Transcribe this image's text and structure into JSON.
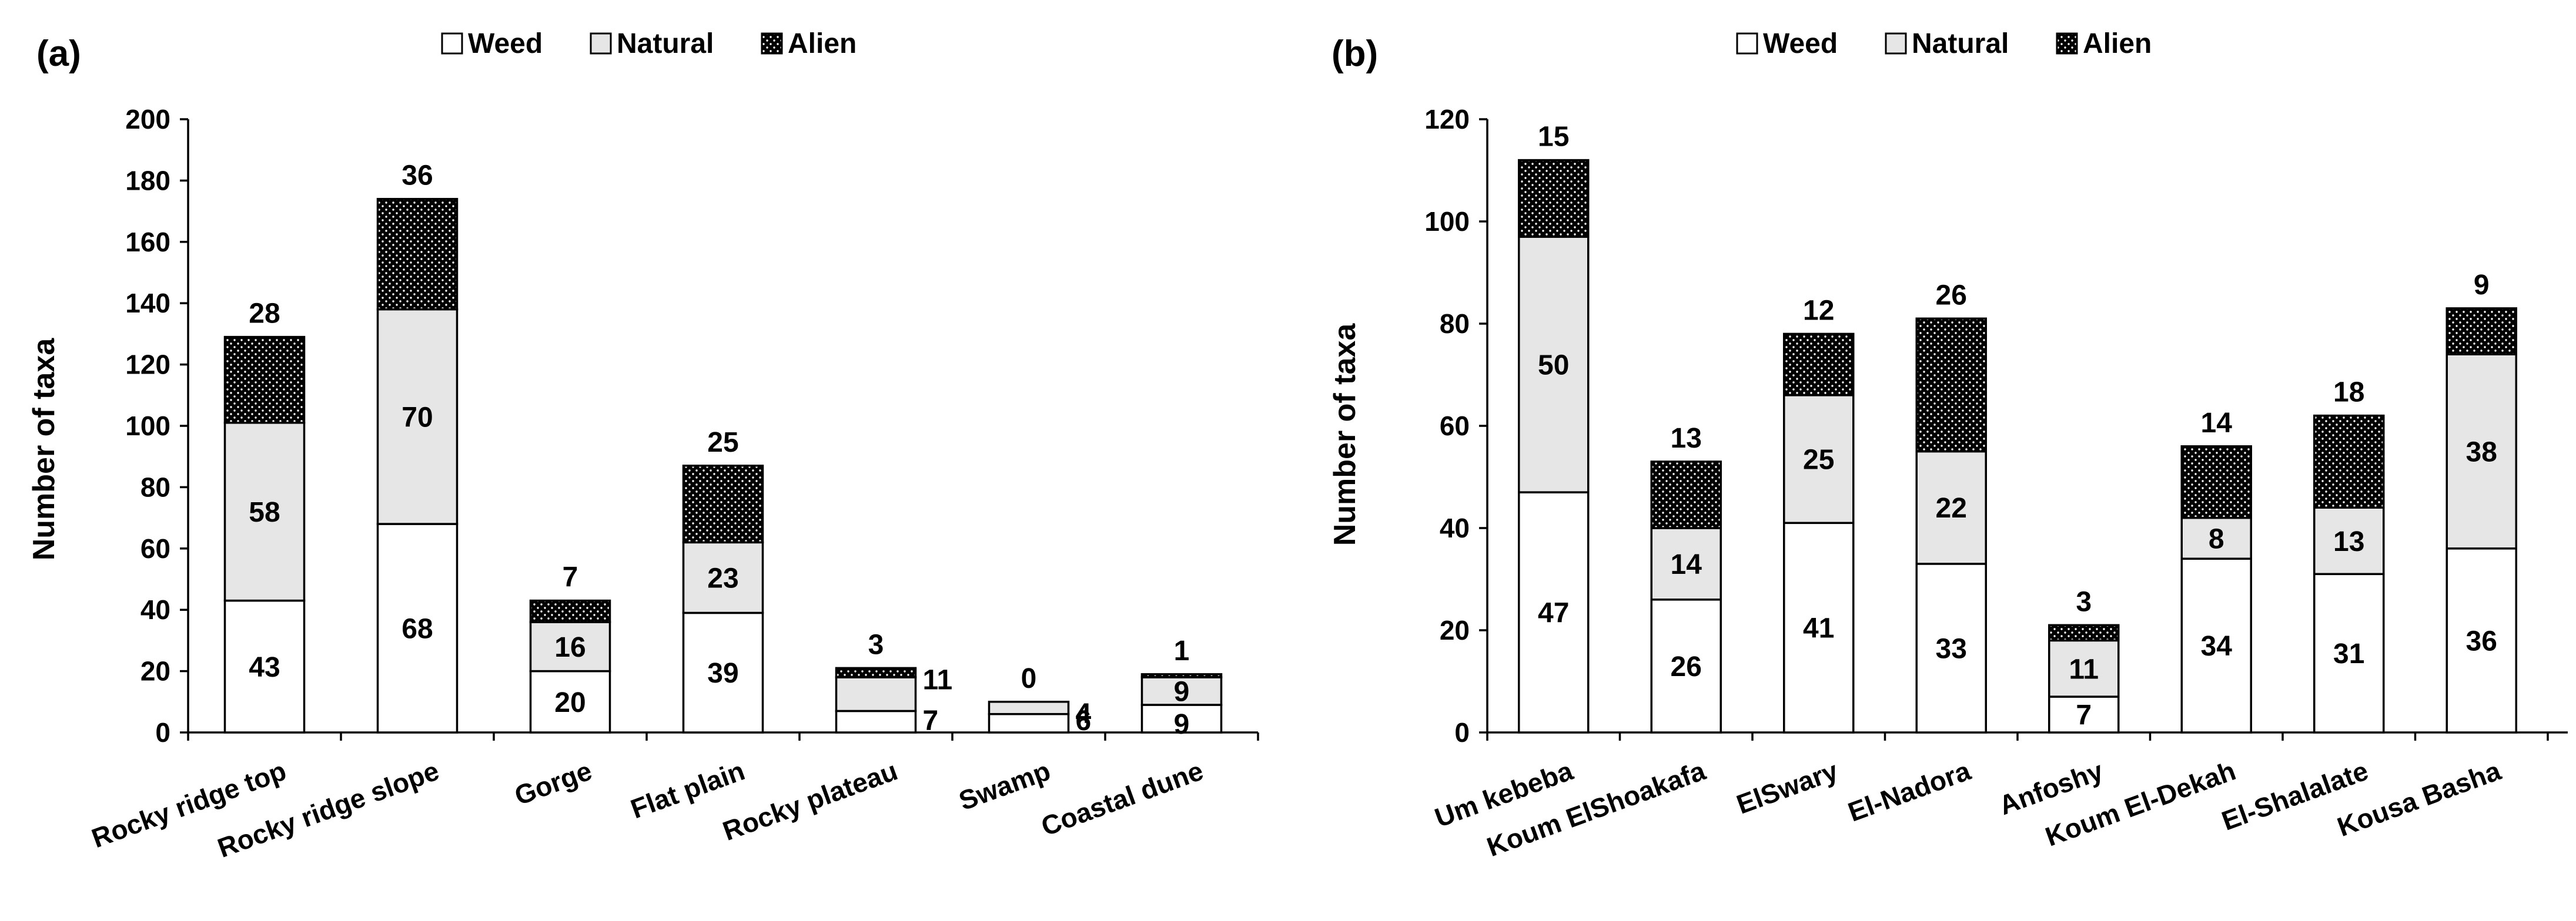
{
  "chart_data": [
    {
      "panel_label": "(a)",
      "type": "bar",
      "stacked": true,
      "ylabel": "Number of taxa",
      "ylim": [
        0,
        200
      ],
      "yticks": [
        0,
        20,
        40,
        60,
        80,
        100,
        120,
        140,
        160,
        180,
        200
      ],
      "legend": [
        "Weed",
        "Natural",
        "Alien"
      ],
      "categories": [
        "Rocky ridge top",
        "Rocky ridge slope",
        "Gorge",
        "Flat plain",
        "Rocky plateau",
        "Swamp",
        "Coastal dune"
      ],
      "series": [
        {
          "name": "Weed",
          "values": [
            43,
            68,
            20,
            39,
            7,
            6,
            9
          ]
        },
        {
          "name": "Natural",
          "values": [
            58,
            70,
            16,
            23,
            11,
            4,
            9
          ]
        },
        {
          "name": "Alien",
          "values": [
            28,
            36,
            7,
            25,
            3,
            0,
            1
          ]
        }
      ]
    },
    {
      "panel_label": "(b)",
      "type": "bar",
      "stacked": true,
      "ylabel": "Number of taxa",
      "ylim": [
        0,
        120
      ],
      "yticks": [
        0,
        20,
        40,
        60,
        80,
        100,
        120
      ],
      "legend": [
        "Weed",
        "Natural",
        "Alien"
      ],
      "categories": [
        "Um kebeba",
        "Koum ElShoakafa",
        "ElSwary",
        "El-Nadora",
        "Anfoshy",
        "Koum El-Dekah",
        "El-Shalalate",
        "Kousa Basha"
      ],
      "series": [
        {
          "name": "Weed",
          "values": [
            47,
            26,
            41,
            33,
            7,
            34,
            31,
            36
          ]
        },
        {
          "name": "Natural",
          "values": [
            50,
            14,
            25,
            22,
            11,
            8,
            13,
            38
          ]
        },
        {
          "name": "Alien",
          "values": [
            15,
            13,
            12,
            26,
            3,
            14,
            18,
            9
          ]
        }
      ]
    }
  ],
  "colors": {
    "weed": "#ffffff",
    "natural": "#e6e6e6",
    "alien": "#000000",
    "axis": "#000000"
  }
}
